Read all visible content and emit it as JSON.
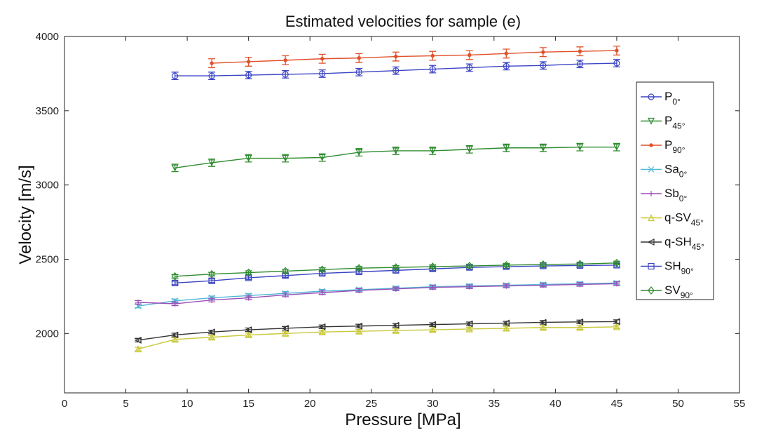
{
  "chart_data": {
    "type": "line",
    "title": "Estimated velocities for sample (e)",
    "xlabel": "Pressure [MPa]",
    "ylabel": "Velocity [m/s]",
    "xlim": [
      0,
      55
    ],
    "ylim": [
      1600,
      4000
    ],
    "xticks": [
      "0",
      "5",
      "10",
      "15",
      "20",
      "25",
      "30",
      "35",
      "40",
      "45",
      "50",
      "55"
    ],
    "yticks": [
      "2000",
      "2500",
      "3000",
      "3500",
      "4000"
    ],
    "legend_position": "right",
    "series": [
      {
        "name": "P",
        "sub": "0°",
        "color": "#3b44c4",
        "marker": "circle",
        "x": [
          9,
          12,
          15,
          18,
          21,
          24,
          27,
          30,
          33,
          36,
          39,
          42,
          45
        ],
        "y": [
          3735,
          3735,
          3740,
          3745,
          3750,
          3760,
          3770,
          3780,
          3790,
          3800,
          3805,
          3815,
          3820
        ],
        "err": 25
      },
      {
        "name": "P",
        "sub": "45°",
        "color": "#2e8b2e",
        "marker": "triangle-down",
        "x": [
          9,
          12,
          15,
          18,
          21,
          24,
          27,
          30,
          33,
          36,
          39,
          42,
          45
        ],
        "y": [
          3115,
          3150,
          3180,
          3180,
          3185,
          3220,
          3230,
          3230,
          3240,
          3250,
          3250,
          3255,
          3255
        ],
        "err": 25
      },
      {
        "name": "P",
        "sub": "90°",
        "color": "#e0502a",
        "marker": "dot",
        "x": [
          12,
          15,
          18,
          21,
          24,
          27,
          30,
          33,
          36,
          39,
          42,
          45
        ],
        "y": [
          3820,
          3830,
          3840,
          3850,
          3855,
          3865,
          3870,
          3875,
          3885,
          3895,
          3900,
          3905
        ],
        "err": 30
      },
      {
        "name": "Sa",
        "sub": "0°",
        "color": "#4fb7d6",
        "marker": "x",
        "x": [
          6,
          9,
          12,
          15,
          18,
          21,
          24,
          27,
          30,
          33,
          36,
          39,
          42,
          45
        ],
        "y": [
          2185,
          2220,
          2240,
          2255,
          2270,
          2285,
          2295,
          2305,
          2315,
          2320,
          2325,
          2330,
          2335,
          2340
        ],
        "err": 12
      },
      {
        "name": "Sb",
        "sub": "0°",
        "color": "#9d4fb8",
        "marker": "plus",
        "x": [
          6,
          9,
          12,
          15,
          18,
          21,
          24,
          27,
          30,
          33,
          36,
          39,
          42,
          45
        ],
        "y": [
          2210,
          2200,
          2225,
          2240,
          2260,
          2275,
          2290,
          2300,
          2310,
          2315,
          2320,
          2325,
          2330,
          2335
        ],
        "err": 12
      },
      {
        "name": "q-SV",
        "sub": "45°",
        "color": "#c8c83a",
        "marker": "triangle-up",
        "x": [
          6,
          9,
          12,
          15,
          18,
          21,
          24,
          27,
          30,
          33,
          36,
          39,
          42,
          45
        ],
        "y": [
          1895,
          1960,
          1975,
          1990,
          2000,
          2010,
          2015,
          2020,
          2025,
          2030,
          2035,
          2040,
          2040,
          2045
        ],
        "err": 12
      },
      {
        "name": "q-SH",
        "sub": "45°",
        "color": "#333333",
        "marker": "triangle-left",
        "x": [
          6,
          9,
          12,
          15,
          18,
          21,
          24,
          27,
          30,
          33,
          36,
          39,
          42,
          45
        ],
        "y": [
          1955,
          1990,
          2010,
          2025,
          2035,
          2045,
          2050,
          2055,
          2060,
          2065,
          2070,
          2075,
          2078,
          2080
        ],
        "err": 12
      },
      {
        "name": "SH",
        "sub": "90°",
        "color": "#3b44c4",
        "marker": "square",
        "x": [
          9,
          12,
          15,
          18,
          21,
          24,
          27,
          30,
          33,
          36,
          39,
          42,
          45
        ],
        "y": [
          2340,
          2355,
          2375,
          2390,
          2405,
          2415,
          2425,
          2435,
          2445,
          2450,
          2455,
          2458,
          2460
        ],
        "err": 12
      },
      {
        "name": "SV",
        "sub": "90°",
        "color": "#2e8b2e",
        "marker": "diamond",
        "x": [
          9,
          12,
          15,
          18,
          21,
          24,
          27,
          30,
          33,
          36,
          39,
          42,
          45
        ],
        "y": [
          2385,
          2400,
          2410,
          2420,
          2430,
          2440,
          2445,
          2450,
          2455,
          2460,
          2465,
          2468,
          2475
        ],
        "err": 12
      }
    ]
  }
}
